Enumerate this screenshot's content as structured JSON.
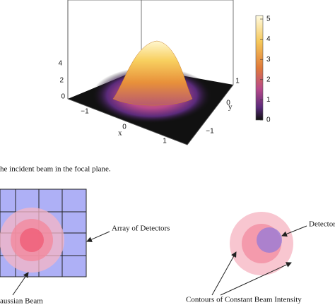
{
  "surface_plot": {
    "zticks": [
      "4",
      "2",
      "0"
    ],
    "xticks": [
      "−1",
      "0",
      "1"
    ],
    "yticks": [
      "1",
      "0",
      "−1"
    ],
    "xlabel": "x",
    "ylabel": "y",
    "colorbar_ticks": [
      "5",
      "4",
      "3",
      "2",
      "1",
      "0"
    ]
  },
  "caption": "he incident beam in the focal plane.",
  "left_diagram": {
    "array_label": "Array of Detectors",
    "beam_label": "aussian Beam"
  },
  "right_diagram": {
    "detector_label": "Detector",
    "contours_label": "Contours of Constant Beam Intensity"
  }
}
